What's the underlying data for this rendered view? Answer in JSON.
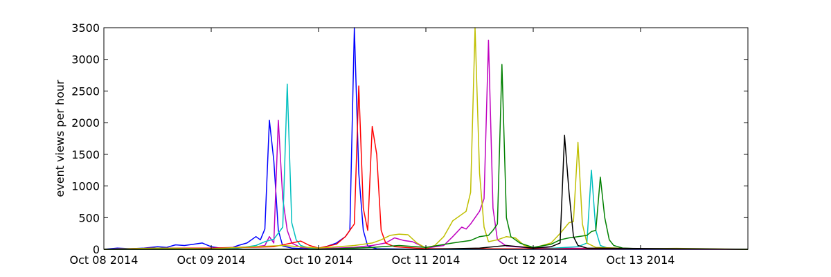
{
  "chart_data": {
    "type": "line",
    "title": "",
    "xlabel": "",
    "ylabel": "event views per hour",
    "xlim": [
      "2014-10-08 00:00",
      "2014-10-14 00:00"
    ],
    "ylim": [
      0,
      3500
    ],
    "x_tick_labels": [
      "Oct 08 2014",
      "Oct 09 2014",
      "Oct 10 2014",
      "Oct 11 2014",
      "Oct 12 2014",
      "Oct 13 2014"
    ],
    "y_tick_labels": [
      "0",
      "500",
      "1000",
      "1500",
      "2000",
      "2500",
      "3000",
      "3500"
    ],
    "grid": false,
    "legend": "none",
    "series": [
      {
        "color": "#0000ff",
        "points": [
          [
            "2014-10-08 00:00",
            0
          ],
          [
            "2014-10-08 03:00",
            20
          ],
          [
            "2014-10-08 06:00",
            10
          ],
          [
            "2014-10-08 09:00",
            20
          ],
          [
            "2014-10-08 12:00",
            40
          ],
          [
            "2014-10-08 14:00",
            30
          ],
          [
            "2014-10-08 16:00",
            70
          ],
          [
            "2014-10-08 18:00",
            60
          ],
          [
            "2014-10-08 20:00",
            80
          ],
          [
            "2014-10-08 22:00",
            100
          ],
          [
            "2014-10-09 00:00",
            40
          ],
          [
            "2014-10-09 02:00",
            20
          ],
          [
            "2014-10-09 04:00",
            10
          ],
          [
            "2014-10-09 06:00",
            60
          ],
          [
            "2014-10-09 08:00",
            100
          ],
          [
            "2014-10-09 10:00",
            200
          ],
          [
            "2014-10-09 11:00",
            150
          ],
          [
            "2014-10-09 12:00",
            320
          ],
          [
            "2014-10-09 13:00",
            2040
          ],
          [
            "2014-10-09 14:00",
            1400
          ],
          [
            "2014-10-09 15:00",
            300
          ],
          [
            "2014-10-09 16:00",
            50
          ],
          [
            "2014-10-09 18:00",
            20
          ],
          [
            "2014-10-10 00:00",
            0
          ],
          [
            "2014-10-10 04:00",
            100
          ],
          [
            "2014-10-10 06:00",
            200
          ],
          [
            "2014-10-10 07:00",
            300
          ],
          [
            "2014-10-10 08:00",
            3500
          ],
          [
            "2014-10-10 09:00",
            1200
          ],
          [
            "2014-10-10 10:00",
            300
          ],
          [
            "2014-10-10 11:00",
            50
          ],
          [
            "2014-10-10 13:00",
            10
          ],
          [
            "2014-10-11 00:00",
            0
          ],
          [
            "2014-10-14 00:00",
            0
          ]
        ]
      },
      {
        "color": "#bf00bf",
        "points": [
          [
            "2014-10-08 00:00",
            0
          ],
          [
            "2014-10-08 12:00",
            20
          ],
          [
            "2014-10-09 00:00",
            20
          ],
          [
            "2014-10-09 10:00",
            40
          ],
          [
            "2014-10-09 12:00",
            60
          ],
          [
            "2014-10-09 13:00",
            200
          ],
          [
            "2014-10-09 14:00",
            100
          ],
          [
            "2014-10-09 15:00",
            2040
          ],
          [
            "2014-10-09 16:00",
            800
          ],
          [
            "2014-10-09 17:00",
            300
          ],
          [
            "2014-10-09 18:00",
            100
          ],
          [
            "2014-10-09 20:00",
            30
          ],
          [
            "2014-10-10 00:00",
            10
          ],
          [
            "2014-10-10 08:00",
            30
          ],
          [
            "2014-10-10 12:00",
            60
          ],
          [
            "2014-10-10 15:00",
            100
          ],
          [
            "2014-10-10 17:00",
            180
          ],
          [
            "2014-10-10 19:00",
            140
          ],
          [
            "2014-10-10 21:00",
            120
          ],
          [
            "2014-10-11 00:00",
            20
          ],
          [
            "2014-10-11 04:00",
            60
          ],
          [
            "2014-10-11 06:00",
            200
          ],
          [
            "2014-10-11 08:00",
            350
          ],
          [
            "2014-10-11 09:00",
            320
          ],
          [
            "2014-10-11 10:00",
            400
          ],
          [
            "2014-10-11 11:00",
            500
          ],
          [
            "2014-10-11 12:00",
            600
          ],
          [
            "2014-10-11 13:00",
            800
          ],
          [
            "2014-10-11 14:00",
            3300
          ],
          [
            "2014-10-11 15:00",
            650
          ],
          [
            "2014-10-11 16:00",
            150
          ],
          [
            "2014-10-11 18:00",
            50
          ],
          [
            "2014-10-12 00:00",
            20
          ],
          [
            "2014-10-14 00:00",
            0
          ]
        ]
      },
      {
        "color": "#00bfbf",
        "points": [
          [
            "2014-10-08 00:00",
            0
          ],
          [
            "2014-10-09 06:00",
            20
          ],
          [
            "2014-10-09 10:00",
            60
          ],
          [
            "2014-10-09 12:00",
            120
          ],
          [
            "2014-10-09 14:00",
            160
          ],
          [
            "2014-10-09 16:00",
            350
          ],
          [
            "2014-10-09 17:00",
            2610
          ],
          [
            "2014-10-09 18:00",
            420
          ],
          [
            "2014-10-09 19:00",
            150
          ],
          [
            "2014-10-09 20:00",
            60
          ],
          [
            "2014-10-09 22:00",
            20
          ],
          [
            "2014-10-10 00:00",
            0
          ],
          [
            "2014-10-12 00:00",
            0
          ],
          [
            "2014-10-12 10:00",
            40
          ],
          [
            "2014-10-12 12:00",
            100
          ],
          [
            "2014-10-12 13:00",
            1250
          ],
          [
            "2014-10-12 14:00",
            300
          ],
          [
            "2014-10-12 15:00",
            60
          ],
          [
            "2014-10-12 17:00",
            10
          ],
          [
            "2014-10-14 00:00",
            0
          ]
        ]
      },
      {
        "color": "#ff0000",
        "points": [
          [
            "2014-10-08 00:00",
            0
          ],
          [
            "2014-10-08 12:00",
            20
          ],
          [
            "2014-10-09 00:00",
            20
          ],
          [
            "2014-10-09 14:00",
            40
          ],
          [
            "2014-10-09 18:00",
            100
          ],
          [
            "2014-10-09 20:00",
            130
          ],
          [
            "2014-10-09 22:00",
            60
          ],
          [
            "2014-10-10 00:00",
            20
          ],
          [
            "2014-10-10 04:00",
            80
          ],
          [
            "2014-10-10 06:00",
            200
          ],
          [
            "2014-10-10 07:00",
            300
          ],
          [
            "2014-10-10 08:00",
            400
          ],
          [
            "2014-10-10 09:00",
            2580
          ],
          [
            "2014-10-10 10:00",
            650
          ],
          [
            "2014-10-10 11:00",
            300
          ],
          [
            "2014-10-10 12:00",
            1940
          ],
          [
            "2014-10-10 13:00",
            1500
          ],
          [
            "2014-10-10 14:00",
            300
          ],
          [
            "2014-10-10 15:00",
            100
          ],
          [
            "2014-10-10 17:00",
            40
          ],
          [
            "2014-10-11 00:00",
            10
          ],
          [
            "2014-10-14 00:00",
            0
          ]
        ]
      },
      {
        "color": "#bfbf00",
        "points": [
          [
            "2014-10-08 00:00",
            0
          ],
          [
            "2014-10-08 12:00",
            20
          ],
          [
            "2014-10-09 00:00",
            10
          ],
          [
            "2014-10-09 16:00",
            60
          ],
          [
            "2014-10-10 00:00",
            20
          ],
          [
            "2014-10-10 08:00",
            60
          ],
          [
            "2014-10-10 12:00",
            100
          ],
          [
            "2014-10-10 14:00",
            150
          ],
          [
            "2014-10-10 16:00",
            220
          ],
          [
            "2014-10-10 18:00",
            240
          ],
          [
            "2014-10-10 20:00",
            230
          ],
          [
            "2014-10-10 22:00",
            100
          ],
          [
            "2014-10-11 00:00",
            20
          ],
          [
            "2014-10-11 02:00",
            60
          ],
          [
            "2014-10-11 04:00",
            200
          ],
          [
            "2014-10-11 06:00",
            450
          ],
          [
            "2014-10-11 08:00",
            550
          ],
          [
            "2014-10-11 09:00",
            600
          ],
          [
            "2014-10-11 10:00",
            900
          ],
          [
            "2014-10-11 11:00",
            3500
          ],
          [
            "2014-10-11 12:00",
            1200
          ],
          [
            "2014-10-11 13:00",
            350
          ],
          [
            "2014-10-11 14:00",
            120
          ],
          [
            "2014-10-11 16:00",
            150
          ],
          [
            "2014-10-11 18:00",
            200
          ],
          [
            "2014-10-11 20:00",
            180
          ],
          [
            "2014-10-11 22:00",
            60
          ],
          [
            "2014-10-12 00:00",
            20
          ],
          [
            "2014-10-12 04:00",
            100
          ],
          [
            "2014-10-12 06:00",
            250
          ],
          [
            "2014-10-12 08:00",
            420
          ],
          [
            "2014-10-12 09:00",
            440
          ],
          [
            "2014-10-12 10:00",
            1690
          ],
          [
            "2014-10-12 11:00",
            400
          ],
          [
            "2014-10-12 12:00",
            100
          ],
          [
            "2014-10-12 14:00",
            30
          ],
          [
            "2014-10-13 00:00",
            10
          ],
          [
            "2014-10-13 08:00",
            15
          ],
          [
            "2014-10-14 00:00",
            0
          ]
        ]
      },
      {
        "color": "#008000",
        "points": [
          [
            "2014-10-08 00:00",
            0
          ],
          [
            "2014-10-10 00:00",
            0
          ],
          [
            "2014-10-10 12:00",
            30
          ],
          [
            "2014-10-10 18:00",
            60
          ],
          [
            "2014-10-11 00:00",
            30
          ],
          [
            "2014-10-11 06:00",
            100
          ],
          [
            "2014-10-11 08:00",
            120
          ],
          [
            "2014-10-11 10:00",
            140
          ],
          [
            "2014-10-11 12:00",
            200
          ],
          [
            "2014-10-11 14:00",
            220
          ],
          [
            "2014-10-11 15:00",
            300
          ],
          [
            "2014-10-11 16:00",
            400
          ],
          [
            "2014-10-11 17:00",
            2920
          ],
          [
            "2014-10-11 18:00",
            500
          ],
          [
            "2014-10-11 19:00",
            200
          ],
          [
            "2014-10-11 21:00",
            100
          ],
          [
            "2014-10-12 00:00",
            30
          ],
          [
            "2014-10-12 04:00",
            80
          ],
          [
            "2014-10-12 06:00",
            150
          ],
          [
            "2014-10-12 08:00",
            180
          ],
          [
            "2014-10-12 10:00",
            200
          ],
          [
            "2014-10-12 12:00",
            220
          ],
          [
            "2014-10-12 13:00",
            280
          ],
          [
            "2014-10-12 14:00",
            300
          ],
          [
            "2014-10-12 15:00",
            1140
          ],
          [
            "2014-10-12 16:00",
            500
          ],
          [
            "2014-10-12 17:00",
            150
          ],
          [
            "2014-10-12 18:00",
            60
          ],
          [
            "2014-10-12 20:00",
            20
          ],
          [
            "2014-10-13 00:00",
            10
          ],
          [
            "2014-10-14 00:00",
            0
          ]
        ]
      },
      {
        "color": "#000000",
        "points": [
          [
            "2014-10-08 00:00",
            0
          ],
          [
            "2014-10-11 00:00",
            0
          ],
          [
            "2014-10-11 12:00",
            20
          ],
          [
            "2014-10-11 18:00",
            60
          ],
          [
            "2014-10-12 00:00",
            20
          ],
          [
            "2014-10-12 04:00",
            40
          ],
          [
            "2014-10-12 06:00",
            100
          ],
          [
            "2014-10-12 07:00",
            1800
          ],
          [
            "2014-10-12 08:00",
            900
          ],
          [
            "2014-10-12 09:00",
            200
          ],
          [
            "2014-10-12 10:00",
            60
          ],
          [
            "2014-10-12 12:00",
            20
          ],
          [
            "2014-10-14 00:00",
            0
          ]
        ]
      }
    ]
  }
}
